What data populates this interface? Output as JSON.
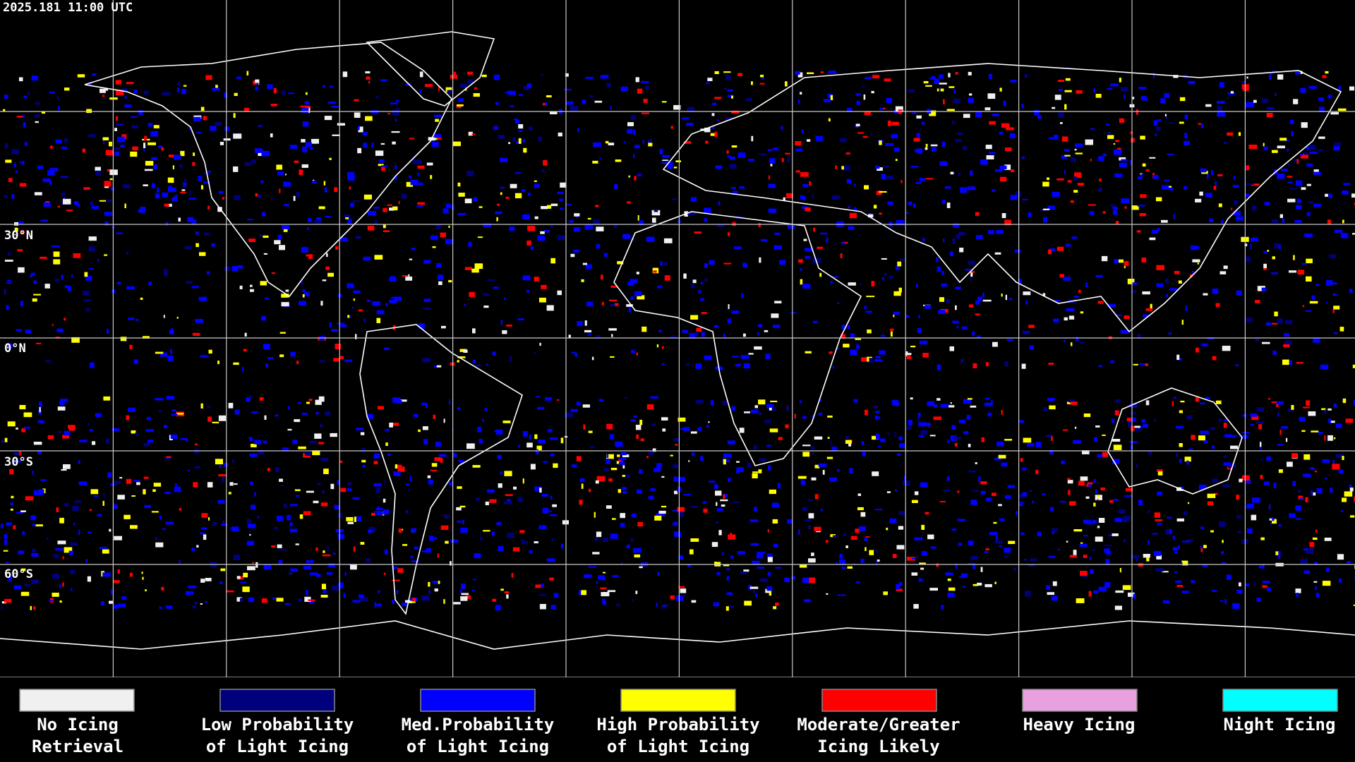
{
  "timestamp": "2025.181 11:00 UTC",
  "latitude_labels": [
    "30°N",
    "0°N",
    "30°S",
    "60°S"
  ],
  "legend": [
    {
      "lines": [
        "No Icing",
        "Retrieval"
      ],
      "color": "#f0f0f0"
    },
    {
      "lines": [
        "Low Probability",
        "of Light Icing"
      ],
      "color": "#00007f"
    },
    {
      "lines": [
        "Med.Probability",
        "of Light Icing"
      ],
      "color": "#0000ff"
    },
    {
      "lines": [
        "High Probability",
        "of Light Icing"
      ],
      "color": "#ffff00"
    },
    {
      "lines": [
        "Moderate/Greater",
        "Icing Likely"
      ],
      "color": "#ff0000"
    },
    {
      "lines": [
        "Heavy Icing"
      ],
      "color": "#e8a0e0"
    },
    {
      "lines": [
        "Night Icing"
      ],
      "color": "#00ffff"
    }
  ]
}
